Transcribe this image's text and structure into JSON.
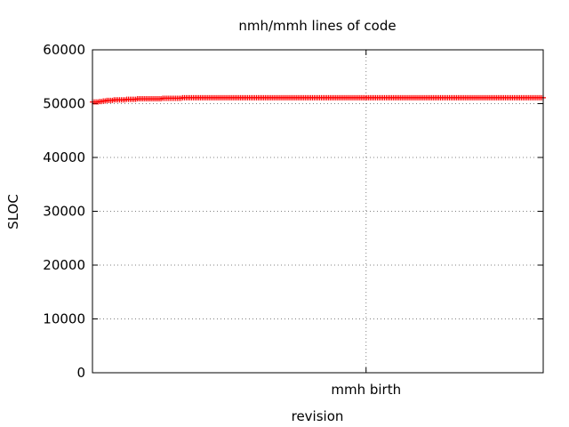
{
  "chart_data": {
    "type": "scatter",
    "title": "nmh/mmh lines of code",
    "xlabel": "revision",
    "ylabel": "SLOC",
    "ylim": [
      0,
      60000
    ],
    "yticks": [
      0,
      10000,
      20000,
      30000,
      40000,
      50000,
      60000
    ],
    "xlim": [
      0,
      1
    ],
    "xticks": [
      {
        "value": 0.607,
        "label": "mmh birth"
      }
    ],
    "grid": true,
    "legend": "none",
    "marker": "+",
    "color": "#ff0000",
    "series": [
      {
        "x": [
          0.0,
          0.004,
          0.008,
          0.012,
          0.016,
          0.02,
          0.024,
          0.028,
          0.032,
          0.036,
          0.04,
          0.044,
          0.048,
          0.052,
          0.056,
          0.06,
          0.064,
          0.068,
          0.072,
          0.076,
          0.08,
          0.084,
          0.088,
          0.092,
          0.096,
          0.1,
          0.104,
          0.108,
          0.112,
          0.116,
          0.12,
          0.124,
          0.128,
          0.132,
          0.136,
          0.14,
          0.144,
          0.148,
          0.152,
          0.156,
          0.16,
          0.164,
          0.168,
          0.172,
          0.176,
          0.18,
          0.184,
          0.188,
          0.192,
          0.196,
          0.2,
          0.204,
          0.208,
          0.212,
          0.216,
          0.22,
          0.224,
          0.228,
          0.232,
          0.236,
          0.24,
          0.244,
          0.248,
          0.252,
          0.256,
          0.26,
          0.264,
          0.268,
          0.272,
          0.276,
          0.28,
          0.284,
          0.288,
          0.292,
          0.296,
          0.3,
          0.304,
          0.308,
          0.312,
          0.316,
          0.32,
          0.324,
          0.328,
          0.332,
          0.336,
          0.34,
          0.344,
          0.348,
          0.352,
          0.356,
          0.36,
          0.364,
          0.368,
          0.372,
          0.376,
          0.38,
          0.384,
          0.388,
          0.392,
          0.396,
          0.4,
          0.404,
          0.408,
          0.412,
          0.416,
          0.42,
          0.424,
          0.428,
          0.432,
          0.436,
          0.44,
          0.444,
          0.448,
          0.452,
          0.456,
          0.46,
          0.464,
          0.468,
          0.472,
          0.476,
          0.48,
          0.484,
          0.488,
          0.492,
          0.496,
          0.5,
          0.504,
          0.508,
          0.512,
          0.516,
          0.52,
          0.524,
          0.528,
          0.532,
          0.536,
          0.54,
          0.544,
          0.548,
          0.552,
          0.556,
          0.56,
          0.564,
          0.568,
          0.572,
          0.576,
          0.58,
          0.584,
          0.588,
          0.592,
          0.596,
          0.6,
          0.604,
          0.608,
          0.612,
          0.616,
          0.62,
          0.624,
          0.628,
          0.632,
          0.636,
          0.64,
          0.644,
          0.648,
          0.652,
          0.656,
          0.66,
          0.664,
          0.668,
          0.672,
          0.676,
          0.68,
          0.684,
          0.688,
          0.692,
          0.696,
          0.7,
          0.704,
          0.708,
          0.712,
          0.716,
          0.72,
          0.724,
          0.728,
          0.732,
          0.736,
          0.74,
          0.744,
          0.748,
          0.752,
          0.756,
          0.76,
          0.764,
          0.768,
          0.772,
          0.776,
          0.78,
          0.784,
          0.788,
          0.792,
          0.796,
          0.8,
          0.804,
          0.808,
          0.812,
          0.816,
          0.82,
          0.824,
          0.828,
          0.832,
          0.836,
          0.84,
          0.844,
          0.848,
          0.852,
          0.856,
          0.86,
          0.864,
          0.868,
          0.872,
          0.876,
          0.88,
          0.884,
          0.888,
          0.892,
          0.896,
          0.9,
          0.904,
          0.908,
          0.912,
          0.916,
          0.92,
          0.924,
          0.928,
          0.932,
          0.936,
          0.94,
          0.944,
          0.948,
          0.952,
          0.956,
          0.96,
          0.964,
          0.968,
          0.972,
          0.976,
          0.98,
          0.984,
          0.988,
          0.992,
          0.996,
          1.0
        ],
        "y": [
          50300,
          50300,
          50300,
          50300,
          50400,
          50400,
          50500,
          50500,
          50600,
          50600,
          50600,
          50600,
          50700,
          50700,
          50700,
          50700,
          50700,
          50700,
          50700,
          50800,
          50800,
          50800,
          50800,
          50800,
          50800,
          50900,
          50900,
          50900,
          50900,
          50900,
          50900,
          50900,
          50900,
          50900,
          50900,
          50900,
          50900,
          50900,
          50900,
          51000,
          51000,
          51000,
          51000,
          51000,
          51000,
          51000,
          51000,
          51000,
          51000,
          51000,
          51100,
          51100,
          51100,
          51100,
          51100,
          51100,
          51100,
          51100,
          51100,
          51100,
          51100,
          51100,
          51100,
          51100,
          51100,
          51100,
          51100,
          51100,
          51100,
          51100,
          51100,
          51100,
          51100,
          51100,
          51100,
          51100,
          51100,
          51100,
          51100,
          51100,
          51100,
          51100,
          51100,
          51100,
          51100,
          51100,
          51100,
          51100,
          51100,
          51100,
          51100,
          51100,
          51100,
          51100,
          51100,
          51100,
          51100,
          51100,
          51100,
          51100,
          51100,
          51100,
          51100,
          51100,
          51100,
          51100,
          51100,
          51100,
          51100,
          51100,
          51100,
          51100,
          51100,
          51100,
          51100,
          51100,
          51100,
          51100,
          51100,
          51100,
          51100,
          51100,
          51100,
          51100,
          51100,
          51100,
          51100,
          51100,
          51100,
          51100,
          51100,
          51100,
          51100,
          51100,
          51100,
          51100,
          51100,
          51100,
          51100,
          51100,
          51100,
          51100,
          51100,
          51100,
          51100,
          51100,
          51100,
          51100,
          51100,
          51100,
          51100,
          51100,
          51100,
          51100,
          51100,
          51100,
          51100,
          51100,
          51100,
          51100,
          51100,
          51100,
          51100,
          51100,
          51100,
          51100,
          51100,
          51100,
          51100,
          51100,
          51100,
          51100,
          51100,
          51100,
          51100,
          51100,
          51100,
          51100,
          51100,
          51100,
          51100,
          51100,
          51100,
          51100,
          51100,
          51100,
          51100,
          51100,
          51100,
          51100,
          51100,
          51100,
          51100,
          51100,
          51100,
          51100,
          51100,
          51100,
          51100,
          51100,
          51100,
          51100,
          51100,
          51100,
          51100,
          51100,
          51100,
          51100,
          51100,
          51100,
          51100,
          51100,
          51100,
          51100,
          51100,
          51100,
          51100,
          51100,
          51100,
          51100,
          51100,
          51100,
          51100,
          51100,
          51100,
          51100,
          51100,
          51100,
          51100,
          51100,
          51100,
          51100,
          51100,
          51100,
          51100,
          51100,
          51100,
          51100,
          51100,
          51100,
          51100,
          51100,
          51100,
          51100,
          51100,
          51100,
          51100,
          51100,
          51100,
          51100,
          51100
        ]
      }
    ]
  }
}
